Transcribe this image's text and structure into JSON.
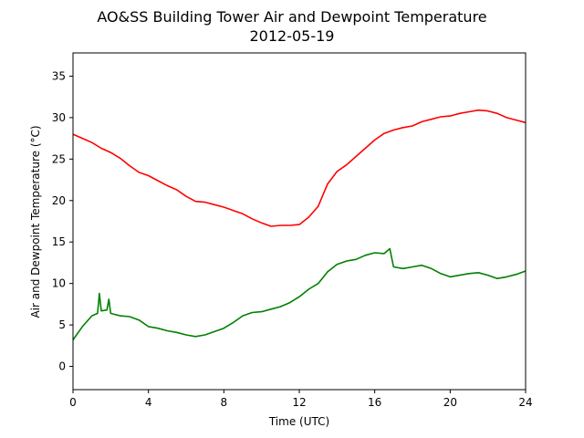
{
  "chart_data": {
    "type": "line",
    "title": "AO&SS Building Tower Air and Dewpoint Temperature",
    "subtitle": "2012-05-19",
    "xlabel": "Time (UTC)",
    "ylabel": "Air and Dewpoint Temperature (°C)",
    "xlim": [
      0,
      24
    ],
    "ylim": [
      -2.8,
      37.8
    ],
    "xticks": [
      0,
      4,
      8,
      12,
      16,
      20,
      24
    ],
    "yticks": [
      0,
      5,
      10,
      15,
      20,
      25,
      30,
      35
    ],
    "grid": false,
    "legend": "none",
    "series": [
      {
        "color": "#ff0000",
        "points": [
          [
            0,
            28.0
          ],
          [
            0.5,
            27.5
          ],
          [
            1.0,
            27.0
          ],
          [
            1.5,
            26.3
          ],
          [
            2.0,
            25.8
          ],
          [
            2.5,
            25.1
          ],
          [
            3.0,
            24.2
          ],
          [
            3.5,
            23.4
          ],
          [
            4.0,
            23.0
          ],
          [
            4.5,
            22.4
          ],
          [
            5.0,
            21.8
          ],
          [
            5.5,
            21.3
          ],
          [
            6.0,
            20.5
          ],
          [
            6.5,
            19.9
          ],
          [
            7.0,
            19.8
          ],
          [
            7.5,
            19.5
          ],
          [
            8.0,
            19.2
          ],
          [
            8.5,
            18.8
          ],
          [
            9.0,
            18.4
          ],
          [
            9.5,
            17.8
          ],
          [
            10.0,
            17.3
          ],
          [
            10.5,
            16.9
          ],
          [
            11.0,
            17.0
          ],
          [
            11.5,
            17.0
          ],
          [
            12.0,
            17.1
          ],
          [
            12.5,
            18.0
          ],
          [
            13.0,
            19.3
          ],
          [
            13.5,
            22.0
          ],
          [
            14.0,
            23.5
          ],
          [
            14.5,
            24.3
          ],
          [
            15.0,
            25.3
          ],
          [
            15.5,
            26.3
          ],
          [
            16.0,
            27.3
          ],
          [
            16.5,
            28.1
          ],
          [
            17.0,
            28.5
          ],
          [
            17.5,
            28.8
          ],
          [
            18.0,
            29.0
          ],
          [
            18.5,
            29.5
          ],
          [
            19.0,
            29.8
          ],
          [
            19.5,
            30.1
          ],
          [
            20.0,
            30.2
          ],
          [
            20.5,
            30.5
          ],
          [
            21.0,
            30.7
          ],
          [
            21.5,
            30.9
          ],
          [
            22.0,
            30.8
          ],
          [
            22.5,
            30.5
          ],
          [
            23.0,
            30.0
          ],
          [
            23.5,
            29.7
          ],
          [
            24.0,
            29.4
          ]
        ]
      },
      {
        "color": "#008000",
        "points": [
          [
            0,
            3.2
          ],
          [
            0.5,
            4.8
          ],
          [
            1.0,
            6.1
          ],
          [
            1.3,
            6.4
          ],
          [
            1.4,
            8.8
          ],
          [
            1.5,
            6.7
          ],
          [
            1.8,
            6.8
          ],
          [
            1.9,
            8.1
          ],
          [
            2.0,
            6.4
          ],
          [
            2.5,
            6.1
          ],
          [
            3.0,
            6.0
          ],
          [
            3.5,
            5.6
          ],
          [
            4.0,
            4.8
          ],
          [
            4.5,
            4.6
          ],
          [
            5.0,
            4.3
          ],
          [
            5.5,
            4.1
          ],
          [
            6.0,
            3.8
          ],
          [
            6.5,
            3.6
          ],
          [
            7.0,
            3.8
          ],
          [
            7.5,
            4.2
          ],
          [
            8.0,
            4.6
          ],
          [
            8.5,
            5.3
          ],
          [
            9.0,
            6.1
          ],
          [
            9.5,
            6.5
          ],
          [
            10.0,
            6.6
          ],
          [
            10.5,
            6.9
          ],
          [
            11.0,
            7.2
          ],
          [
            11.5,
            7.7
          ],
          [
            12.0,
            8.4
          ],
          [
            12.5,
            9.3
          ],
          [
            13.0,
            10.0
          ],
          [
            13.5,
            11.4
          ],
          [
            14.0,
            12.3
          ],
          [
            14.5,
            12.7
          ],
          [
            15.0,
            12.9
          ],
          [
            15.5,
            13.4
          ],
          [
            16.0,
            13.7
          ],
          [
            16.5,
            13.6
          ],
          [
            16.8,
            14.2
          ],
          [
            17.0,
            12.0
          ],
          [
            17.5,
            11.8
          ],
          [
            18.0,
            12.0
          ],
          [
            18.5,
            12.2
          ],
          [
            19.0,
            11.8
          ],
          [
            19.5,
            11.2
          ],
          [
            20.0,
            10.8
          ],
          [
            20.5,
            11.0
          ],
          [
            21.0,
            11.2
          ],
          [
            21.5,
            11.3
          ],
          [
            22.0,
            11.0
          ],
          [
            22.5,
            10.6
          ],
          [
            23.0,
            10.8
          ],
          [
            23.5,
            11.1
          ],
          [
            24.0,
            11.5
          ]
        ]
      }
    ]
  }
}
